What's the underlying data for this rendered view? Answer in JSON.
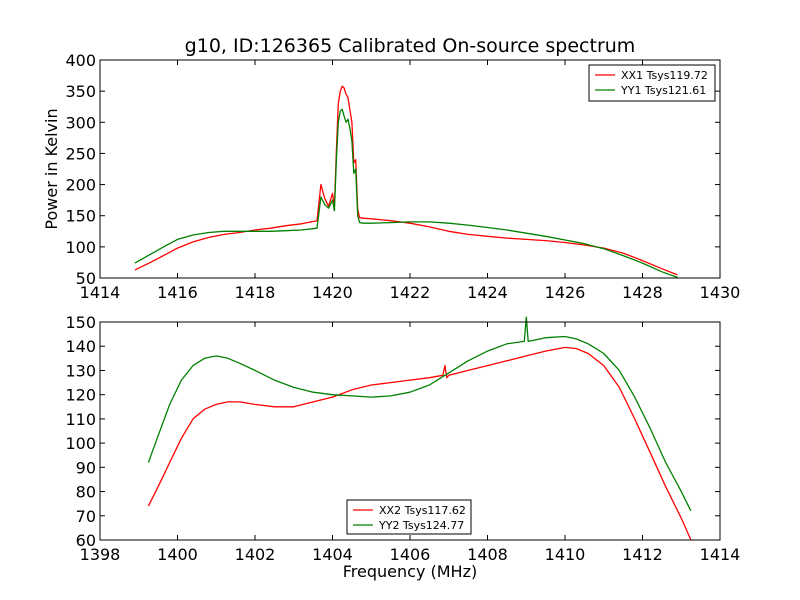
{
  "chart_data": [
    {
      "type": "line",
      "title": "g10, ID:126365 Calibrated On-source spectrum",
      "xlabel": "",
      "ylabel": "Power in Kelvin",
      "xlim": [
        1414,
        1430
      ],
      "ylim": [
        50,
        400
      ],
      "xticks": [
        "1414",
        "1416",
        "1418",
        "1420",
        "1422",
        "1424",
        "1426",
        "1428",
        "1430"
      ],
      "yticks": [
        "50",
        "100",
        "150",
        "200",
        "250",
        "300",
        "350",
        "400"
      ],
      "legend_position": "top-right",
      "series": [
        {
          "name": "XX1 Tsys119.72",
          "color": "#ff0000",
          "x": [
            1414.9,
            1415.3,
            1415.7,
            1416.0,
            1416.4,
            1416.8,
            1417.2,
            1417.6,
            1418.0,
            1418.4,
            1418.8,
            1419.2,
            1419.6,
            1419.7,
            1419.8,
            1419.9,
            1420.0,
            1420.05,
            1420.1,
            1420.15,
            1420.2,
            1420.25,
            1420.3,
            1420.35,
            1420.4,
            1420.45,
            1420.5,
            1420.55,
            1420.6,
            1420.65,
            1420.7,
            1420.8,
            1421.0,
            1421.5,
            1422.0,
            1422.5,
            1423.0,
            1423.5,
            1424.0,
            1424.5,
            1425.0,
            1425.5,
            1426.0,
            1426.5,
            1427.0,
            1427.5,
            1428.0,
            1428.5,
            1428.9
          ],
          "values": [
            63,
            75,
            88,
            98,
            108,
            115,
            120,
            123,
            127,
            130,
            134,
            137,
            142,
            200,
            178,
            165,
            186,
            165,
            255,
            330,
            350,
            358,
            355,
            345,
            340,
            320,
            300,
            235,
            240,
            160,
            147,
            146,
            145,
            142,
            138,
            132,
            125,
            120,
            117,
            114,
            112,
            110,
            107,
            103,
            98,
            90,
            78,
            65,
            55
          ]
        },
        {
          "name": "YY1 Tsys121.61",
          "color": "#008000",
          "x": [
            1414.9,
            1415.3,
            1415.7,
            1416.0,
            1416.4,
            1416.8,
            1417.2,
            1417.6,
            1418.0,
            1418.4,
            1418.8,
            1419.2,
            1419.6,
            1419.7,
            1419.8,
            1419.9,
            1420.0,
            1420.05,
            1420.1,
            1420.15,
            1420.2,
            1420.25,
            1420.3,
            1420.35,
            1420.4,
            1420.45,
            1420.5,
            1420.55,
            1420.6,
            1420.65,
            1420.7,
            1420.8,
            1421.0,
            1421.5,
            1422.0,
            1422.5,
            1423.0,
            1423.5,
            1424.0,
            1424.5,
            1425.0,
            1425.5,
            1426.0,
            1426.5,
            1427.0,
            1427.5,
            1428.0,
            1428.5,
            1428.9
          ],
          "values": [
            74,
            88,
            102,
            112,
            119,
            123,
            125,
            125,
            125,
            125,
            126,
            127,
            130,
            180,
            168,
            162,
            175,
            158,
            240,
            300,
            318,
            321,
            310,
            300,
            305,
            290,
            270,
            218,
            225,
            150,
            139,
            138,
            138,
            139,
            140,
            140,
            138,
            135,
            131,
            127,
            122,
            117,
            111,
            105,
            97,
            86,
            74,
            60,
            51
          ]
        }
      ]
    },
    {
      "type": "line",
      "title": "",
      "xlabel": "Frequency (MHz)",
      "ylabel": "",
      "xlim": [
        1398,
        1414
      ],
      "ylim": [
        60,
        150
      ],
      "xticks": [
        "1398",
        "1400",
        "1402",
        "1404",
        "1406",
        "1408",
        "1410",
        "1412",
        "1414"
      ],
      "yticks": [
        "60",
        "70",
        "80",
        "90",
        "100",
        "110",
        "120",
        "130",
        "140",
        "150"
      ],
      "legend_position": "bottom-center",
      "series": [
        {
          "name": "XX2 Tsys117.62",
          "color": "#ff0000",
          "x": [
            1399.25,
            1399.5,
            1399.8,
            1400.1,
            1400.4,
            1400.7,
            1401.0,
            1401.3,
            1401.6,
            1402.0,
            1402.5,
            1403.0,
            1403.5,
            1404.0,
            1404.5,
            1405.0,
            1405.5,
            1406.0,
            1406.5,
            1406.85,
            1406.9,
            1406.95,
            1407.0,
            1407.5,
            1408.0,
            1408.5,
            1409.0,
            1409.5,
            1410.0,
            1410.3,
            1410.6,
            1411.0,
            1411.4,
            1411.8,
            1412.2,
            1412.6,
            1413.0,
            1413.25
          ],
          "values": [
            74,
            82,
            92,
            102,
            110,
            114,
            116,
            117,
            117,
            116,
            115,
            115,
            117,
            119,
            122,
            124,
            125,
            126,
            127,
            128,
            132,
            127,
            128,
            130,
            132,
            134,
            136,
            138,
            139.5,
            139,
            137,
            132,
            123,
            110,
            96,
            82,
            69,
            60
          ]
        },
        {
          "name": "YY2 Tsys124.77",
          "color": "#008000",
          "x": [
            1399.25,
            1399.5,
            1399.8,
            1400.1,
            1400.4,
            1400.7,
            1401.0,
            1401.3,
            1401.6,
            1402.0,
            1402.5,
            1403.0,
            1403.5,
            1404.0,
            1404.5,
            1405.0,
            1405.5,
            1406.0,
            1406.5,
            1407.0,
            1407.5,
            1408.0,
            1408.5,
            1408.95,
            1409.0,
            1409.05,
            1409.5,
            1410.0,
            1410.3,
            1410.6,
            1411.0,
            1411.4,
            1411.8,
            1412.2,
            1412.6,
            1413.0,
            1413.25
          ],
          "values": [
            92,
            103,
            116,
            126,
            132,
            135,
            136,
            135,
            133,
            130,
            126,
            123,
            121,
            120,
            119.5,
            119,
            119.5,
            121,
            124,
            129,
            134,
            138,
            141,
            142,
            152,
            142,
            143.5,
            144,
            143,
            141,
            137,
            130,
            119,
            106,
            92,
            80,
            72
          ]
        }
      ]
    }
  ]
}
